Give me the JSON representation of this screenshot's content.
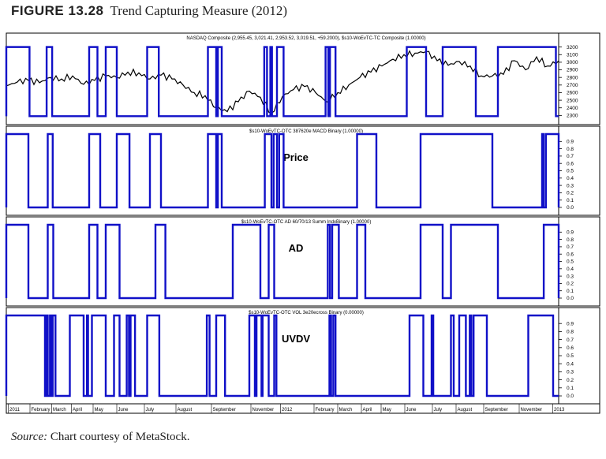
{
  "figure": {
    "number": "FIGURE 13.28",
    "title": "Trend Capturing Measure (2012)",
    "source_label": "Source:",
    "source_text": "Chart courtesy of MetaStock."
  },
  "chart_data": [
    {
      "type": "line",
      "title": "NASDAQ Composite (2,955.45, 3,021.41, 2,953.52, 3,019.51, +59.2000), $s10-WoEvTC-TC Composite (1.00000)",
      "series": [
        {
          "name": "NASDAQ Composite",
          "color": "#000000",
          "x": [
            0,
            2,
            4,
            6,
            8,
            10,
            12,
            14,
            16,
            18,
            20,
            22,
            24,
            26,
            28,
            30,
            32,
            34,
            36,
            38,
            40,
            42,
            44,
            46,
            48,
            50,
            52,
            54,
            56,
            58,
            60,
            62,
            64,
            66,
            68,
            70,
            72,
            74,
            76,
            78,
            80,
            82,
            84,
            86,
            88,
            90,
            92,
            94,
            96,
            98,
            100
          ],
          "values": [
            2690,
            2740,
            2760,
            2730,
            2800,
            2780,
            2820,
            2710,
            2760,
            2820,
            2800,
            2870,
            2860,
            2780,
            2830,
            2780,
            2700,
            2600,
            2560,
            2400,
            2350,
            2480,
            2620,
            2540,
            2330,
            2550,
            2640,
            2680,
            2600,
            2480,
            2600,
            2700,
            2800,
            2870,
            2950,
            3040,
            3100,
            3120,
            3140,
            3020,
            2960,
            3010,
            2950,
            2820,
            2820,
            2840,
            3020,
            2900,
            3070,
            2950,
            3019
          ]
        },
        {
          "name": "$s10-WoEvTC-TC Composite",
          "color": "#1010c8",
          "high": 3200,
          "low": 2290,
          "on_intervals": [
            [
              0,
              4.2
            ],
            [
              7.3,
              8.3
            ],
            [
              15,
              16.5
            ],
            [
              18,
              20
            ],
            [
              25.5,
              27.6
            ],
            [
              36.5,
              38
            ],
            [
              38.3,
              39
            ],
            [
              46.7,
              47.2
            ],
            [
              47.8,
              48.1
            ],
            [
              49,
              50.2
            ],
            [
              57.8,
              58.3
            ],
            [
              58.6,
              59.6
            ],
            [
              72.5,
              76
            ],
            [
              79,
              85
            ],
            [
              89,
              99.5
            ]
          ]
        }
      ],
      "ylim": [
        2200,
        3300
      ],
      "y_ticks": [
        "3200",
        "3100",
        "3000",
        "2900",
        "2800",
        "2700",
        "2600",
        "2500",
        "2400",
        "2300"
      ]
    },
    {
      "type": "line",
      "title": "$s10-WoEvTC-OTC 387620e MACD Binary (1.00000)",
      "annotation": "Price",
      "series": [
        {
          "name": "$s10-WoEvTC-OTC 387620e MACD Binary",
          "color": "#1010c8",
          "on_intervals": [
            [
              0,
              4
            ],
            [
              7.5,
              8.4
            ],
            [
              15,
              17
            ],
            [
              20,
              22.3
            ],
            [
              26,
              28
            ],
            [
              36.5,
              38
            ],
            [
              38.3,
              39
            ],
            [
              46.8,
              48
            ],
            [
              48.4,
              49
            ],
            [
              49.4,
              50.2
            ],
            [
              63.5,
              67
            ],
            [
              75,
              88
            ],
            [
              97,
              97.3
            ],
            [
              97.7,
              100
            ]
          ]
        }
      ],
      "ylim": [
        0,
        1
      ],
      "y_ticks": [
        "0.9",
        "0.8",
        "0.7",
        "0.6",
        "0.5",
        "0.4",
        "0.3",
        "0.2",
        "0.1",
        "0.0"
      ]
    },
    {
      "type": "line",
      "title": "$s10-WoEvTC-OTC AD 60/70/13 Summ IndxBinary (1.00000)",
      "annotation": "AD",
      "series": [
        {
          "name": "$s10-WoEvTC-OTC AD 60/70/13 Summ IndxBinary",
          "color": "#1010c8",
          "on_intervals": [
            [
              0,
              4
            ],
            [
              7.5,
              8.5
            ],
            [
              15,
              16.5
            ],
            [
              18,
              20.5
            ],
            [
              27,
              28.8
            ],
            [
              41,
              46
            ],
            [
              47.5,
              48.5
            ],
            [
              58.2,
              58.6
            ],
            [
              59,
              60.2
            ],
            [
              63.5,
              65
            ],
            [
              75,
              79
            ],
            [
              80.5,
              89
            ],
            [
              97.3,
              100
            ]
          ]
        }
      ],
      "ylim": [
        0,
        1
      ],
      "y_ticks": [
        "0.9",
        "0.8",
        "0.7",
        "0.6",
        "0.5",
        "0.4",
        "0.3",
        "0.2",
        "0.1",
        "0.0"
      ]
    },
    {
      "type": "line",
      "title": "$s10-WoEvTC-OTC VOL 3e20ecross Binary (0.00000)",
      "annotation": "UVDV",
      "series": [
        {
          "name": "$s10-WoEvTC-OTC VOL 3e20ecross Binary",
          "color": "#1010c8",
          "on_intervals": [
            [
              0,
              7
            ],
            [
              7.3,
              7.5
            ],
            [
              7.9,
              8.1
            ],
            [
              8.4,
              8.9
            ],
            [
              11.5,
              14
            ],
            [
              14.6,
              14.8
            ],
            [
              15.5,
              18
            ],
            [
              19.5,
              20.5
            ],
            [
              21.8,
              22.2
            ],
            [
              22.5,
              23.3
            ],
            [
              25.5,
              27.7
            ],
            [
              36.3,
              36.8
            ],
            [
              38,
              39.6
            ],
            [
              44,
              45
            ],
            [
              45.3,
              46.2
            ],
            [
              46.4,
              47.5
            ],
            [
              48.5,
              48.9
            ],
            [
              58.5,
              58.8
            ],
            [
              59.2,
              59.6
            ],
            [
              73,
              75.5
            ],
            [
              77,
              77.3
            ],
            [
              80.5,
              81
            ],
            [
              82,
              83.2
            ],
            [
              83.9,
              84.2
            ],
            [
              84.6,
              87
            ],
            [
              94.5,
              99
            ]
          ]
        }
      ],
      "ylim": [
        0,
        1
      ],
      "y_ticks": [
        "0.9",
        "0.8",
        "0.7",
        "0.6",
        "0.5",
        "0.4",
        "0.3",
        "0.2",
        "0.1",
        "0.0"
      ]
    }
  ],
  "x_axis": {
    "labels": [
      "2011",
      "February",
      "March",
      "April",
      "May",
      "June",
      "July",
      "August",
      "September",
      "November",
      "2012",
      "February",
      "March",
      "April",
      "May",
      "June",
      "July",
      "August",
      "September",
      "November",
      "2013"
    ],
    "positions": [
      0.5,
      6,
      11.5,
      16.5,
      22,
      28,
      35,
      43,
      52,
      62,
      69.5,
      78,
      84,
      90,
      95,
      101,
      108,
      114,
      121,
      130,
      138.5
    ],
    "range": [
      0,
      140
    ]
  }
}
